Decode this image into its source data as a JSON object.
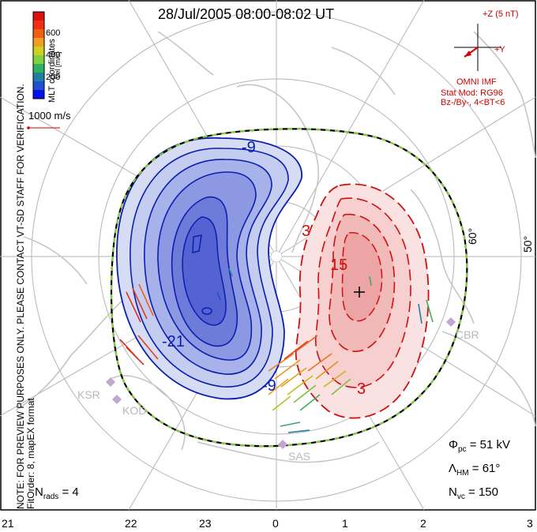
{
  "title": "28/Jul/2005 08:00-08:02 UT",
  "side_notes": {
    "line1": "NOTE: FOR PREVIEW PURPOSES ONLY. PLEASE CONTACT VT-SD STAFF FOR VERIFICATION.",
    "line2": "FitOrder: 8, mapEX format"
  },
  "colorbar": {
    "label": "Vel [m/s]",
    "ticks": [
      "600",
      "400",
      "200"
    ],
    "colors": [
      "#e01010",
      "#f06010",
      "#f0a020",
      "#d0d020",
      "#80d040",
      "#30b060",
      "#2080a0",
      "#2050d0",
      "#0010f0"
    ]
  },
  "coord_label": "MLT coordinates",
  "vector_scale": "1000 m/s",
  "imf": {
    "z_label": "+Z (5 nT)",
    "y_label": "+Y",
    "source": "OMNI IMF",
    "model": "Stat Mod: RG96",
    "conditions": "Bz-/By-, 4<BT<6"
  },
  "contour_labels": [
    "-9",
    "-21",
    "-9",
    "3",
    "15",
    "3"
  ],
  "stations": [
    "CBR",
    "KSR",
    "KOD",
    "SAS"
  ],
  "lat_labels": [
    "60°",
    "50°"
  ],
  "mlt_labels": [
    "21",
    "22",
    "23",
    "0",
    "1",
    "2",
    "3"
  ],
  "stats": {
    "phi_pc": "51 kV",
    "lambda_hm": "61°",
    "n_vc": "150",
    "n_rads": "4"
  },
  "colors": {
    "negative_line": "#0a1fb0",
    "positive_line": "#d01010",
    "boundary_green": "#88cc44",
    "grid_gray": "#b0b0b0",
    "land_gray": "#c8c8c8"
  }
}
